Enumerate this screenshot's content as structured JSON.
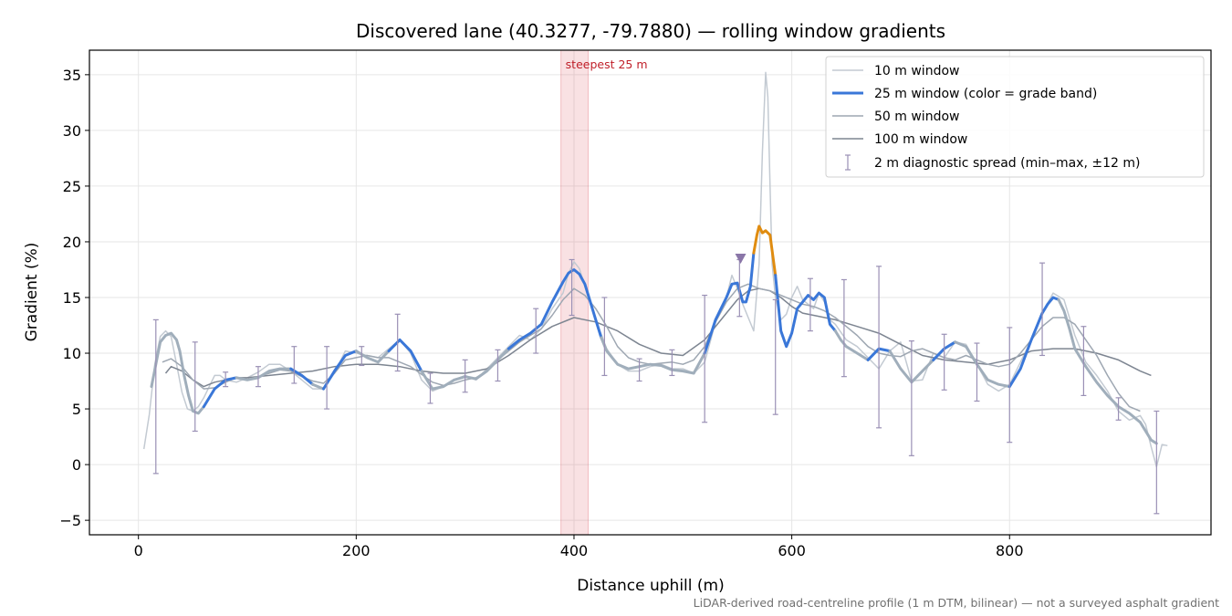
{
  "chart_data": {
    "type": "line",
    "title": "Discovered lane (40.3277, -79.7880) — rolling window gradients",
    "xlabel": "Distance uphill (m)",
    "ylabel": "Gradient (%)",
    "xlim": [
      -45,
      985
    ],
    "ylim": [
      -6.3,
      37.2
    ],
    "xticks": [
      0,
      200,
      400,
      600,
      800
    ],
    "xtick_labels": [
      "0",
      "200",
      "400",
      "600",
      "800"
    ],
    "yticks": [
      -5,
      0,
      5,
      10,
      15,
      20,
      25,
      30,
      35
    ],
    "ytick_labels": [
      "−5",
      "0",
      "5",
      "10",
      "15",
      "20",
      "25",
      "30",
      "35"
    ],
    "grid": true,
    "legend_position": "top-right",
    "footnote": "LiDAR-derived road-centreline profile (1 m DTM, bilinear) — not a surveyed asphalt gradient",
    "highlight": {
      "x_start": 388,
      "x_end": 413,
      "label": "steepest 25 m",
      "color": "#e05a63"
    },
    "marker": {
      "x": 553,
      "y": 18.6,
      "shape": "triangle-down",
      "color": "#8a76a8"
    },
    "colors": {
      "w10": "#c3cad2",
      "w25_low": "#3a77d8",
      "w25_grey": "#a0aebb",
      "w25_high": "#e08c10",
      "w50": "#9ea7b2",
      "w100": "#7d8591",
      "err": "#9a90b5"
    },
    "series": [
      {
        "name": "10 m window",
        "key": "w10",
        "x": [
          5,
          10,
          15,
          20,
          25,
          30,
          35,
          40,
          45,
          50,
          55,
          60,
          65,
          70,
          75,
          80,
          90,
          100,
          110,
          120,
          130,
          140,
          150,
          160,
          170,
          180,
          190,
          200,
          210,
          220,
          230,
          240,
          250,
          260,
          270,
          280,
          290,
          300,
          310,
          320,
          330,
          340,
          350,
          360,
          370,
          380,
          390,
          395,
          400,
          405,
          410,
          420,
          430,
          440,
          450,
          460,
          470,
          480,
          490,
          500,
          510,
          520,
          530,
          540,
          545,
          550,
          555,
          560,
          565,
          570,
          573,
          576,
          578,
          580,
          582,
          585,
          590,
          595,
          600,
          605,
          610,
          615,
          620,
          625,
          630,
          635,
          640,
          650,
          660,
          670,
          680,
          690,
          700,
          710,
          720,
          730,
          740,
          750,
          760,
          770,
          780,
          790,
          800,
          810,
          820,
          830,
          840,
          850,
          860,
          870,
          880,
          890,
          900,
          910,
          920,
          925,
          930,
          935,
          940,
          945
        ],
        "y": [
          1.4,
          4.5,
          9,
          11.5,
          12,
          11.5,
          9,
          6.5,
          5,
          4.8,
          5.2,
          6,
          7,
          8,
          8,
          7.6,
          7.4,
          7.8,
          8.3,
          9,
          9,
          8.4,
          7.6,
          6.8,
          6.8,
          8.2,
          10.2,
          10,
          9.8,
          9.6,
          10.4,
          11.2,
          10,
          7.6,
          6.6,
          7,
          7.6,
          8,
          7.6,
          8.6,
          9.6,
          10.6,
          11.6,
          11.2,
          12.2,
          14,
          15.4,
          17.2,
          18.2,
          17.6,
          16,
          13,
          10.4,
          9,
          8.4,
          8.4,
          8.8,
          9,
          8.6,
          8.6,
          8.2,
          9.2,
          12.8,
          15,
          17,
          15.8,
          14.4,
          13.2,
          12,
          18,
          28,
          35.2,
          33,
          25,
          18,
          15,
          13,
          13.5,
          15,
          16,
          14.8,
          14.4,
          14,
          15.4,
          14.6,
          13,
          12.6,
          11.2,
          10.6,
          9.6,
          8.6,
          10.2,
          11,
          7.5,
          7.6,
          10,
          9.6,
          11,
          10.8,
          9,
          7.2,
          6.6,
          7.2,
          9.2,
          11.2,
          13.6,
          15.4,
          14.8,
          11.6,
          9.2,
          8,
          6.6,
          4.8,
          4,
          4.4,
          3.6,
          1.6,
          -0.2,
          1.8,
          1.7
        ]
      },
      {
        "name": "25 m window (color = grade band)",
        "key": "w25",
        "x": [
          12,
          15,
          20,
          25,
          30,
          35,
          38,
          42,
          46,
          50,
          55,
          60,
          70,
          80,
          90,
          100,
          110,
          120,
          130,
          140,
          150,
          160,
          170,
          180,
          190,
          200,
          210,
          220,
          230,
          240,
          250,
          260,
          270,
          280,
          290,
          300,
          310,
          320,
          330,
          340,
          350,
          360,
          370,
          380,
          390,
          395,
          400,
          405,
          410,
          415,
          420,
          425,
          430,
          440,
          450,
          460,
          470,
          480,
          490,
          500,
          510,
          520,
          530,
          540,
          545,
          550,
          555,
          558,
          562,
          565,
          568,
          570,
          573,
          576,
          580,
          585,
          590,
          595,
          600,
          605,
          610,
          615,
          620,
          625,
          630,
          635,
          640,
          645,
          650,
          660,
          670,
          680,
          690,
          700,
          710,
          720,
          730,
          740,
          750,
          760,
          770,
          780,
          790,
          800,
          810,
          820,
          830,
          835,
          840,
          845,
          850,
          855,
          860,
          870,
          880,
          890,
          900,
          910,
          920,
          930,
          935
        ],
        "y": [
          7,
          8.5,
          11,
          11.6,
          11.8,
          11.2,
          10.2,
          8,
          6.2,
          4.8,
          4.6,
          5.2,
          6.8,
          7.6,
          7.8,
          7.6,
          7.8,
          8.4,
          8.6,
          8.6,
          8,
          7.2,
          6.8,
          8.4,
          9.8,
          10.2,
          9.6,
          9.2,
          10.2,
          11.2,
          10.2,
          8.4,
          6.8,
          7,
          7.6,
          7.9,
          7.7,
          8.4,
          9.4,
          10.4,
          11.2,
          11.8,
          12.6,
          14.6,
          16.4,
          17.2,
          17.5,
          17.1,
          16.2,
          14.6,
          13,
          11.4,
          10.2,
          9,
          8.6,
          8.8,
          9,
          8.9,
          8.5,
          8.4,
          8.2,
          10,
          13,
          15,
          16.2,
          16.3,
          14.6,
          14.6,
          16,
          19,
          20.6,
          21.4,
          20.8,
          21,
          20.6,
          17,
          12,
          10.6,
          11.8,
          14,
          14.6,
          15.2,
          14.8,
          15.4,
          15,
          12.6,
          12,
          11.2,
          10.6,
          10,
          9.4,
          10.4,
          10.2,
          8.6,
          7.4,
          8.4,
          9.4,
          10.4,
          11,
          10.6,
          9,
          7.6,
          7.2,
          7,
          8.6,
          11.2,
          13.6,
          14.4,
          15,
          14.8,
          13.8,
          12.2,
          10.4,
          8.8,
          7.4,
          6.2,
          5.2,
          4.6,
          3.8,
          2.2,
          1.9
        ]
      },
      {
        "name": "50 m window",
        "key": "w50",
        "x": [
          22,
          30,
          40,
          50,
          60,
          70,
          80,
          90,
          100,
          110,
          120,
          130,
          140,
          150,
          160,
          170,
          180,
          190,
          200,
          210,
          220,
          230,
          240,
          250,
          260,
          270,
          280,
          290,
          300,
          310,
          320,
          330,
          340,
          350,
          360,
          370,
          380,
          390,
          400,
          410,
          420,
          430,
          440,
          450,
          460,
          470,
          480,
          490,
          500,
          510,
          520,
          530,
          540,
          550,
          560,
          570,
          580,
          590,
          600,
          610,
          620,
          630,
          640,
          650,
          660,
          670,
          680,
          690,
          700,
          710,
          720,
          730,
          740,
          750,
          760,
          770,
          780,
          790,
          800,
          810,
          820,
          830,
          840,
          850,
          860,
          870,
          880,
          890,
          900,
          910,
          920
        ],
        "y": [
          9.2,
          9.5,
          8.8,
          7.6,
          6.8,
          6.9,
          7.4,
          7.8,
          7.6,
          7.9,
          8.2,
          8.5,
          8.4,
          7.9,
          7.5,
          7.3,
          8.2,
          9.4,
          9.6,
          9.8,
          9.6,
          9.6,
          9.2,
          8.8,
          8.1,
          7.4,
          7.1,
          7.3,
          7.6,
          7.8,
          8.4,
          9.4,
          10.2,
          11,
          11.6,
          12.2,
          13.4,
          14.8,
          15.8,
          15.2,
          14,
          12.4,
          10.6,
          9.6,
          9.2,
          9,
          9.1,
          9.2,
          9,
          9.4,
          10.6,
          12.8,
          14.6,
          15.8,
          16.2,
          15.8,
          15.6,
          15.2,
          14.8,
          14.4,
          14.2,
          13.8,
          13.2,
          12.4,
          11.6,
          10.6,
          10,
          9.8,
          9.7,
          10.2,
          10.4,
          10,
          9.6,
          9.4,
          9.8,
          9.4,
          9,
          8.8,
          9,
          10,
          11.2,
          12.4,
          13.2,
          13.2,
          12.6,
          11.2,
          9.8,
          8,
          6.4,
          5.2,
          4.8
        ]
      },
      {
        "name": "100 m window",
        "key": "w100",
        "x": [
          25,
          30,
          40,
          50,
          60,
          70,
          80,
          90,
          100,
          120,
          140,
          160,
          180,
          200,
          220,
          240,
          260,
          280,
          300,
          320,
          340,
          360,
          380,
          400,
          420,
          440,
          460,
          480,
          500,
          520,
          540,
          550,
          560,
          570,
          580,
          590,
          600,
          610,
          620,
          640,
          660,
          680,
          700,
          720,
          740,
          760,
          780,
          800,
          820,
          840,
          860,
          880,
          900,
          920,
          930
        ],
        "y": [
          8.2,
          8.8,
          8.4,
          7.6,
          7,
          7.4,
          7.6,
          7.8,
          7.8,
          8,
          8.2,
          8.4,
          8.8,
          9,
          9,
          8.8,
          8.4,
          8.2,
          8.2,
          8.6,
          9.8,
          11.2,
          12.4,
          13.2,
          12.8,
          12,
          10.8,
          10,
          9.8,
          11.2,
          13.6,
          14.8,
          15.6,
          15.8,
          15.6,
          15,
          14.2,
          13.6,
          13.4,
          13,
          12.4,
          11.8,
          10.8,
          9.8,
          9.4,
          9.2,
          9,
          9.4,
          10.2,
          10.4,
          10.4,
          10,
          9.4,
          8.4,
          8
        ]
      }
    ],
    "w25_bands": [
      {
        "band": "grey",
        "from": 0,
        "to": 11
      },
      {
        "band": "low",
        "from": 11,
        "to": 14
      },
      {
        "band": "grey",
        "from": 14,
        "to": 19
      },
      {
        "band": "low",
        "from": 19,
        "to": 21
      },
      {
        "band": "grey",
        "from": 21,
        "to": 22
      },
      {
        "band": "low",
        "from": 22,
        "to": 25
      },
      {
        "band": "grey",
        "from": 25,
        "to": 28
      },
      {
        "band": "low",
        "from": 28,
        "to": 31
      },
      {
        "band": "grey",
        "from": 31,
        "to": 39
      },
      {
        "band": "low",
        "from": 39,
        "to": 51
      },
      {
        "band": "grey",
        "from": 51,
        "to": 61
      },
      {
        "band": "low",
        "from": 61,
        "to": 69
      },
      {
        "band": "high",
        "from": 69,
        "to": 75
      },
      {
        "band": "low",
        "from": 75,
        "to": 86
      },
      {
        "band": "grey",
        "from": 86,
        "to": 90
      },
      {
        "band": "low",
        "from": 90,
        "to": 92
      },
      {
        "band": "grey",
        "from": 92,
        "to": 96
      },
      {
        "band": "low",
        "from": 96,
        "to": 98
      },
      {
        "band": "grey",
        "from": 98,
        "to": 103
      },
      {
        "band": "low",
        "from": 103,
        "to": 109
      },
      {
        "band": "grey",
        "from": 109,
        "to": 122
      }
    ],
    "error_bars": {
      "name": "2 m diagnostic spread (min–max, ±12 m)",
      "x": [
        16,
        52,
        80,
        110,
        143,
        173,
        205,
        238,
        268,
        300,
        330,
        365,
        398,
        428,
        460,
        490,
        520,
        552,
        585,
        617,
        648,
        680,
        710,
        740,
        770,
        800,
        830,
        868,
        900,
        935
      ],
      "low": [
        -0.8,
        3,
        7,
        7,
        7.3,
        5,
        8.9,
        8.4,
        5.5,
        6.5,
        7.5,
        10,
        13.4,
        8,
        7.5,
        8,
        3.8,
        13.3,
        4.5,
        12,
        7.9,
        3.3,
        0.8,
        6.7,
        5.7,
        2,
        9.8,
        6.2,
        4,
        -4.4
      ],
      "high": [
        13,
        11,
        8.3,
        8.8,
        10.6,
        10.6,
        10.6,
        13.5,
        8.2,
        9.4,
        10.3,
        14,
        18.4,
        15,
        9.5,
        10.3,
        15.2,
        18.4,
        14.8,
        16.7,
        16.6,
        17.8,
        11.1,
        11.7,
        10.9,
        12.3,
        18.1,
        12.4,
        6,
        4.8
      ]
    }
  }
}
